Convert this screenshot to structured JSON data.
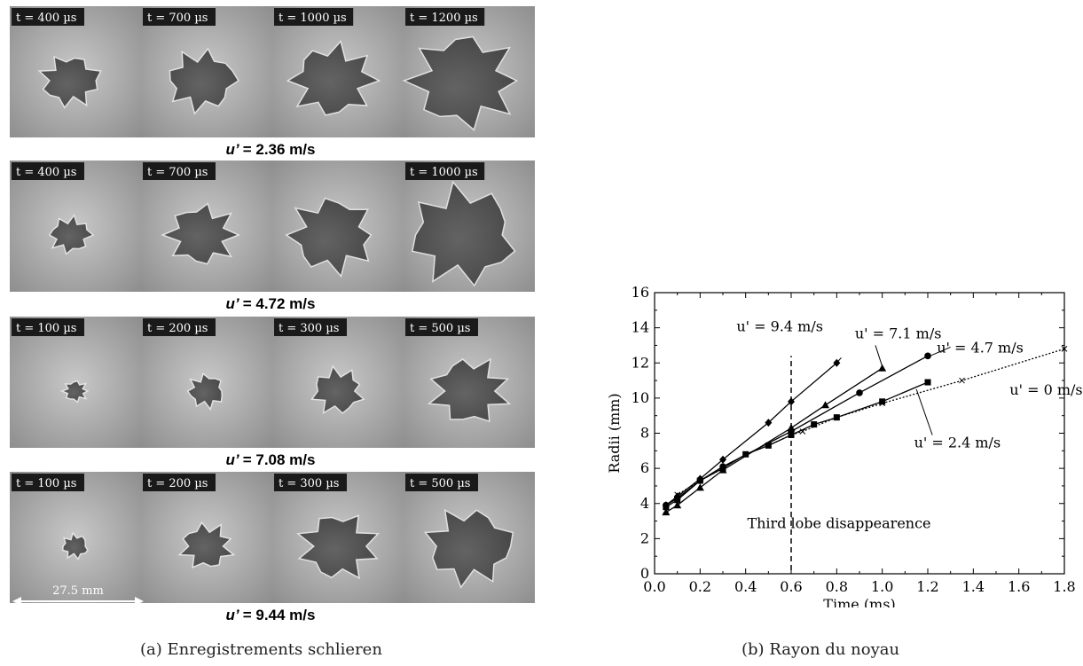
{
  "panel_a": {
    "rows": [
      {
        "times": [
          "t = 400 µs",
          "t = 700 µs",
          "t = 1000 µs",
          "t = 1200 µs"
        ],
        "u_value": "= 2.36 m/s"
      },
      {
        "times": [
          "t = 400 µs",
          "t = 700 µs",
          "",
          "t = 1000 µs"
        ],
        "u_value": "= 4.72 m/s"
      },
      {
        "times": [
          "t = 100 µs",
          "t = 200 µs",
          "t = 300 µs",
          "t = 500 µs"
        ],
        "u_value": "= 7.08 m/s"
      },
      {
        "times": [
          "t = 100 µs",
          "t = 200 µs",
          "t = 300 µs",
          "t = 500 µs"
        ],
        "u_value": "= 9.44 m/s"
      }
    ],
    "u_symbol": "u’",
    "scale_label": "27.5 mm",
    "caption": "(a) Enregistrements schlieren"
  },
  "panel_b_caption": "(b) Rayon du noyau",
  "chart_data": {
    "type": "line",
    "xlabel": "Time (ms)",
    "ylabel": "Radii (mm)",
    "xlim": [
      0,
      1.8
    ],
    "ylim": [
      0,
      16
    ],
    "xticks": [
      "0.0",
      "0.2",
      "0.4",
      "0.6",
      "0.8",
      "1.0",
      "1.2",
      "1.4",
      "1.6",
      "1.8"
    ],
    "yticks": [
      "0",
      "2",
      "4",
      "6",
      "8",
      "10",
      "12",
      "14",
      "16"
    ],
    "grid": false,
    "series": [
      {
        "name": "u' = 0 m/s",
        "marker": "x",
        "dashed": true,
        "x": [
          0.05,
          0.1,
          0.2,
          0.3,
          0.4,
          0.5,
          0.6,
          0.65,
          0.8,
          1.0,
          1.35,
          1.8
        ],
        "y": [
          3.6,
          4.5,
          5.3,
          6.0,
          6.8,
          7.3,
          7.9,
          8.1,
          8.9,
          9.7,
          11.0,
          12.8
        ]
      },
      {
        "name": "u' = 2.4 m/s",
        "marker": "square",
        "dashed": false,
        "x": [
          0.05,
          0.1,
          0.2,
          0.3,
          0.4,
          0.5,
          0.6,
          0.7,
          0.8,
          1.0,
          1.2
        ],
        "y": [
          3.8,
          4.2,
          5.3,
          6.0,
          6.8,
          7.3,
          7.9,
          8.5,
          8.9,
          9.8,
          10.9
        ]
      },
      {
        "name": "u' = 4.7 m/s",
        "marker": "circle",
        "dashed": false,
        "x": [
          0.05,
          0.1,
          0.2,
          0.3,
          0.6,
          0.9,
          1.2
        ],
        "y": [
          3.9,
          4.3,
          5.3,
          6.1,
          8.1,
          10.3,
          12.4
        ]
      },
      {
        "name": "u' = 7.1 m/s",
        "marker": "triangle",
        "dashed": false,
        "x": [
          0.05,
          0.1,
          0.2,
          0.3,
          0.6,
          0.75,
          1.0
        ],
        "y": [
          3.5,
          3.9,
          4.9,
          5.9,
          8.3,
          9.6,
          11.7
        ]
      },
      {
        "name": "u' = 9.4 m/s",
        "marker": "diamond",
        "dashed": false,
        "x": [
          0.05,
          0.1,
          0.2,
          0.3,
          0.5,
          0.6,
          0.8
        ],
        "y": [
          3.9,
          4.4,
          5.4,
          6.5,
          8.6,
          9.8,
          12.0
        ]
      }
    ],
    "vline": {
      "x": 0.6,
      "ymin": 0.2,
      "ymax": 12.4,
      "label": "Third lobe disappearence"
    }
  }
}
